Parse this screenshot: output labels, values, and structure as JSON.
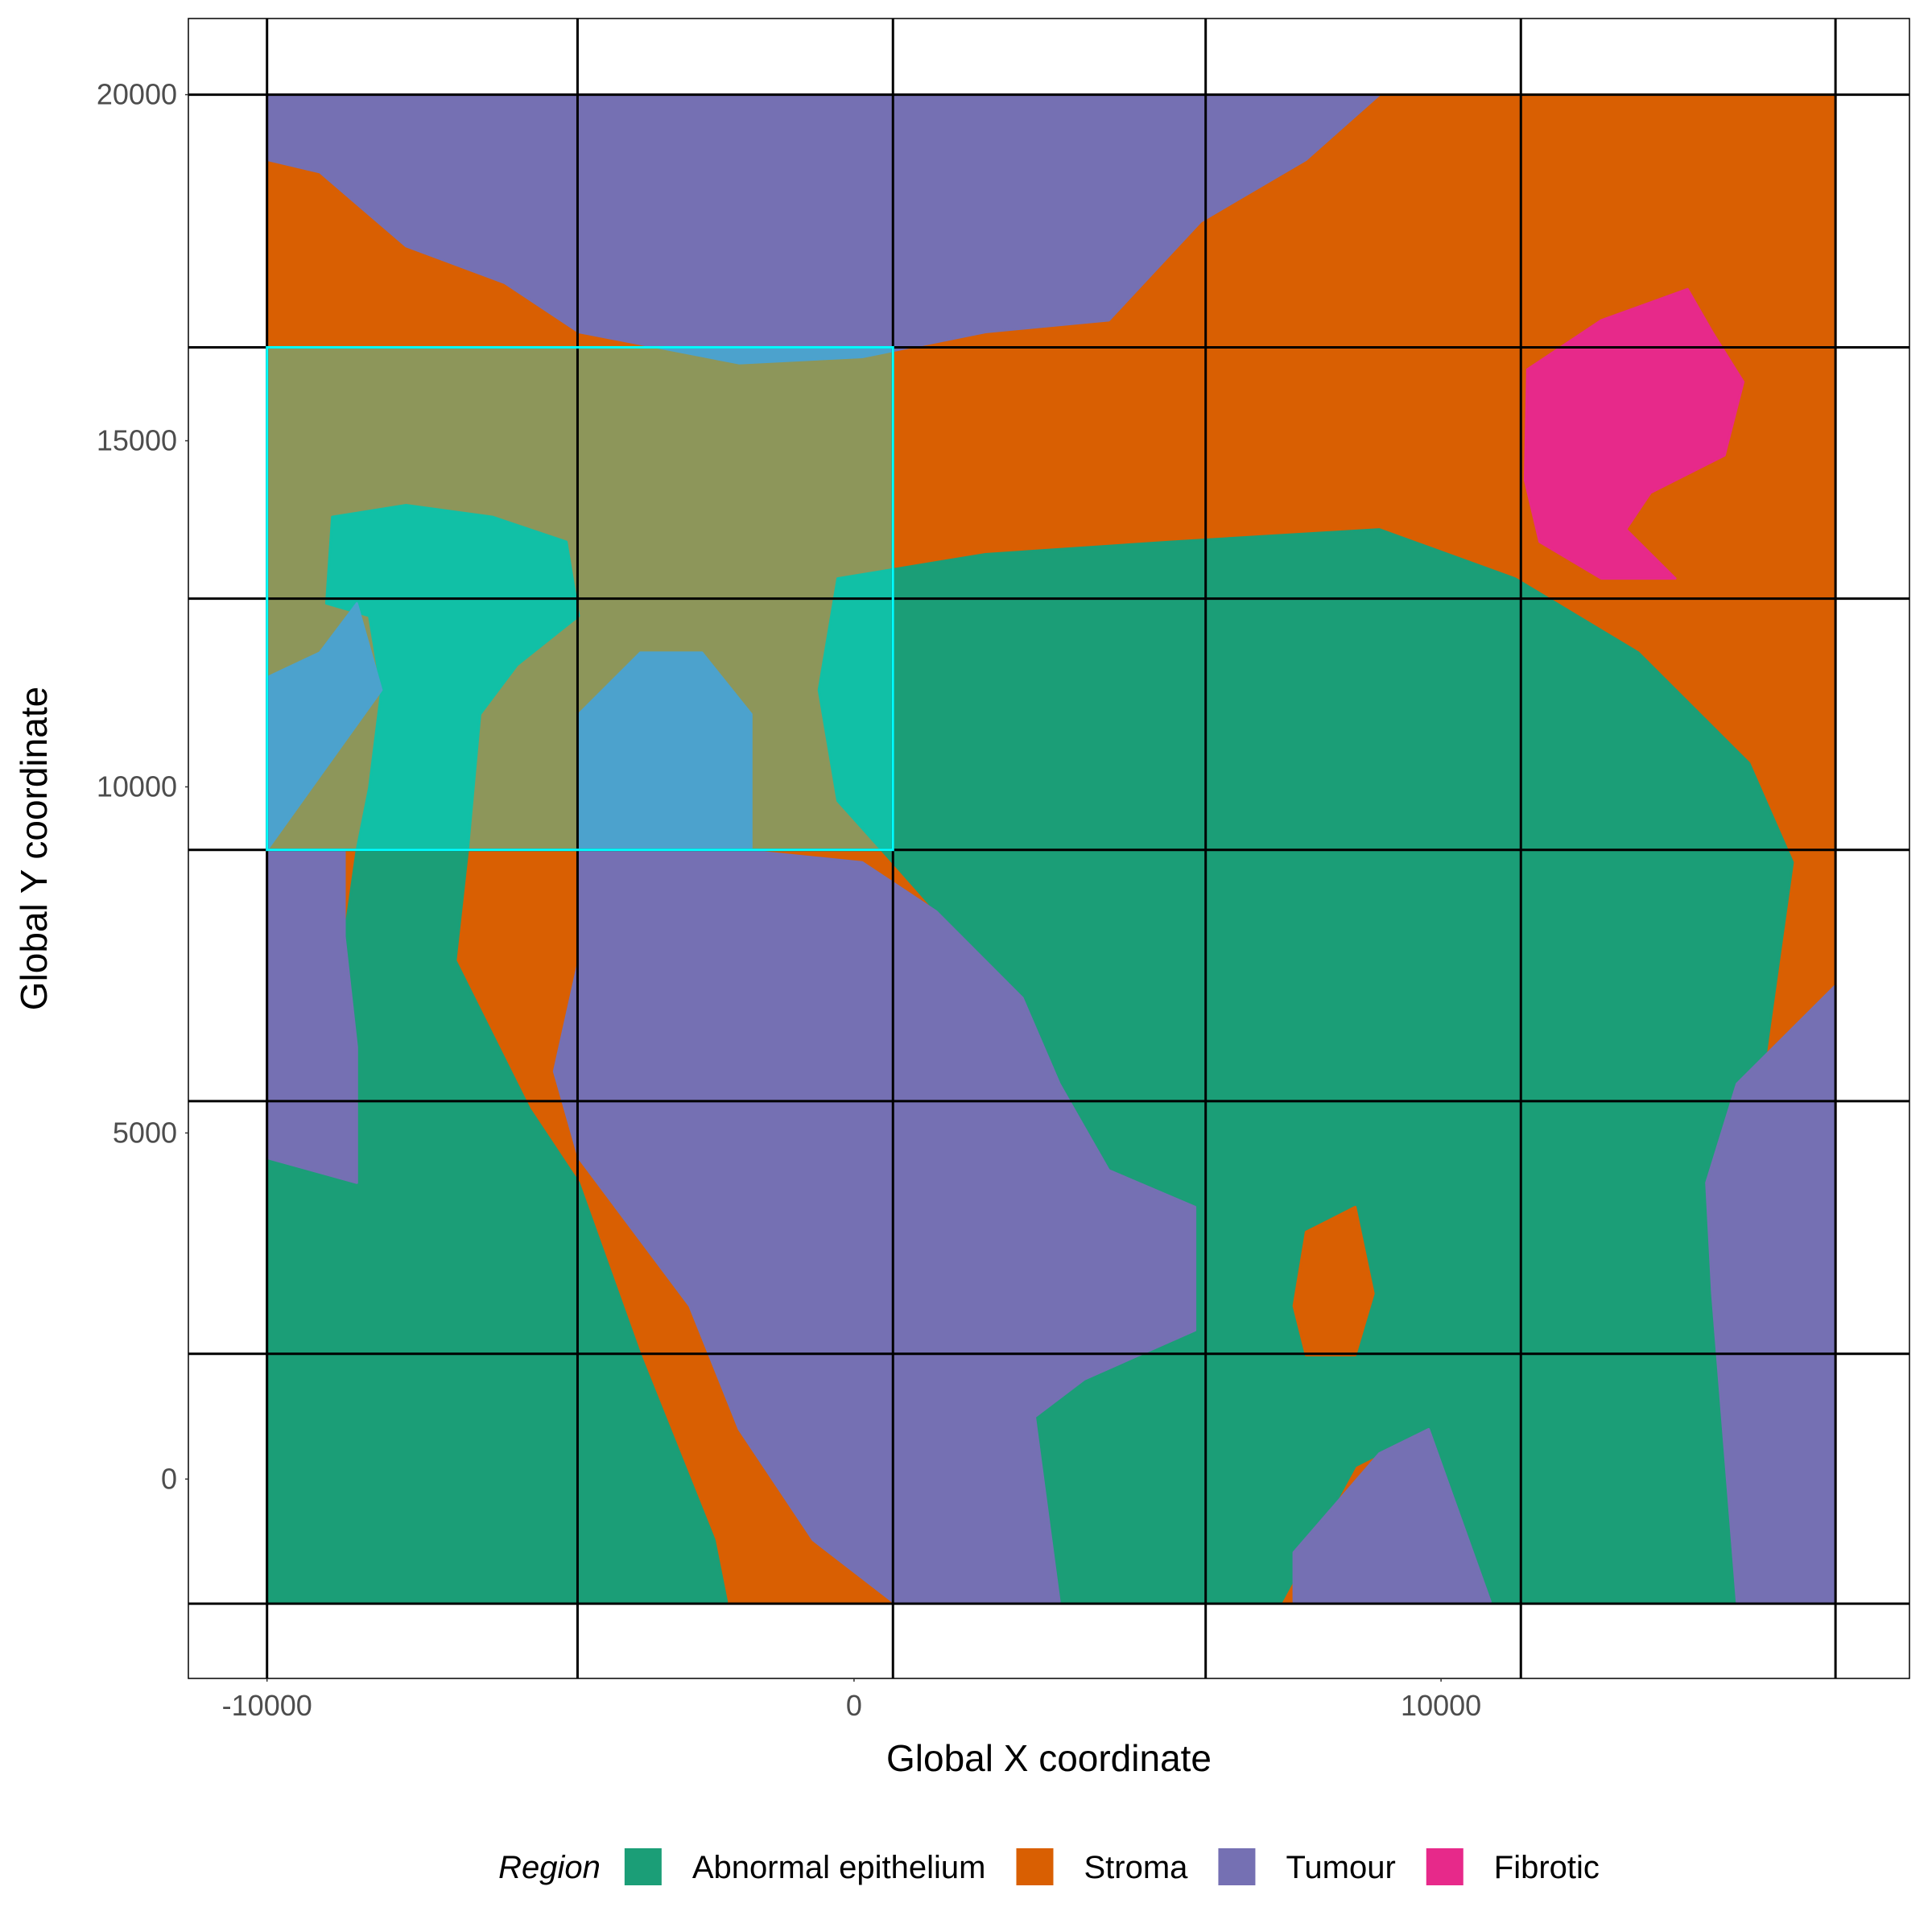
{
  "chart_data": {
    "type": "region-map",
    "x_label": "Global X coordinate",
    "y_label": "Global Y coordinate",
    "legend_title": "Region",
    "legend_position": "bottom",
    "xlim": [
      -11340,
      17980
    ],
    "ylim": [
      -2880,
      21100
    ],
    "xticks": [
      -10000,
      0,
      10000
    ],
    "yticks": [
      0,
      5000,
      10000,
      15000,
      20000
    ],
    "fov_grid": {
      "x": [
        -10000,
        -4710,
        663,
        5990,
        11360,
        16720
      ],
      "y": [
        -1800,
        1810,
        5460,
        9090,
        12720,
        16350,
        20000
      ],
      "color": "#000000"
    },
    "selection": {
      "x": [
        -10000,
        663
      ],
      "y": [
        9090,
        16350
      ],
      "color": "#00ffff"
    },
    "series": [
      {
        "name": "Abnormal epithelium",
        "color": "#1b9e77",
        "polygons": [
          {
            "x": [
              -280,
              2240,
              5390,
              8950,
              11260,
              13360,
              15250,
              15990,
              15460,
              14830,
              14620,
              15040,
              9790,
              9790,
              8540,
              7280,
              6020,
              3500,
              3080,
              3920,
              5810,
              5810,
              4340,
              3500,
              2870,
              1400,
              660,
              -280,
              -600
            ],
            "y": [
              13010,
              13360,
              13540,
              13720,
              13010,
              11940,
              10340,
              8910,
              5710,
              3570,
              2680,
              -1770,
              -1770,
              720,
              190,
              -1770,
              -1770,
              -1770,
              900,
              1440,
              2150,
              3930,
              4460,
              5710,
              6950,
              8200,
              8910,
              9800,
              11400
            ]
          },
          {
            "x": [
              -8470,
              -6580,
              -6790,
              -5530,
              -4690,
              -3640,
              -2380,
              -2170,
              -10000,
              -10000,
              -8470,
              -8470,
              -8680
            ],
            "y": [
              9090,
              9090,
              7490,
              5350,
              4280,
              1790,
              -880,
              -1770,
              -1770,
              4640,
              4280,
              6240,
              7840
            ]
          },
          {
            "x": [
              -8890,
              -7630,
              -6160,
              -4900,
              -4690,
              -5740,
              -6370,
              -6580,
              -8470,
              -8260,
              -8050,
              -8260,
              -8990
            ],
            "y": [
              13900,
              14070,
              13900,
              13540,
              12470,
              11760,
              11050,
              9090,
              9090,
              9980,
              11400,
              12470,
              12650
            ]
          }
        ]
      },
      {
        "name": "Stroma",
        "color": "#d95f02",
        "polygons": [
          {
            "x": [
              -10000,
              16720,
              16720,
              -10000
            ],
            "y": [
              20000,
              20000,
              -1770,
              -1770
            ]
          },
          {
            "x": [
              7700,
              8540,
              8850,
              8540,
              7700,
              7490
            ],
            "y": [
              3570,
              3930,
              2680,
              1790,
              1790,
              2500
            ]
          }
        ]
      },
      {
        "name": "Tumour",
        "color": "#7570b3",
        "polygons": [
          {
            "x": [
              -10000,
              8950,
              7700,
              5910,
              4340,
              2240,
              140,
              -1960,
              -4690,
              -5950,
              -7630,
              -9100,
              -10000
            ],
            "y": [
              20000,
              20000,
              19060,
              18170,
              16740,
              16570,
              16210,
              16120,
              16570,
              17280,
              17810,
              18880,
              19060
            ]
          },
          {
            "x": [
              -4690,
              -1960,
              140,
              1400,
              2870,
              3500,
              4340,
              5810,
              5810,
              3920,
              3080,
              3500,
              660,
              -700,
              -1960,
              -2800,
              -4690,
              -5110,
              -4690
            ],
            "y": [
              9090,
              9090,
              8910,
              8200,
              6950,
              5710,
              4460,
              3930,
              2150,
              1440,
              900,
              -1770,
              -1770,
              -880,
              720,
              2500,
              4640,
              5890,
              7490
            ]
          },
          {
            "x": [
              -10000,
              -8680,
              -8680,
              -8470,
              -8470,
              -10000
            ],
            "y": [
              9090,
              9090,
              7840,
              6240,
              4280,
              4640
            ]
          },
          {
            "x": [
              15040,
              16720,
              16720,
              15040,
              14620,
              14520
            ],
            "y": [
              5710,
              7130,
              -1770,
              -1770,
              2680,
              4280
            ]
          },
          {
            "x": [
              7490,
              8950,
              9790,
              10840,
              7490
            ],
            "y": [
              -1060,
              370,
              720,
              -1770,
              -1770
            ]
          },
          {
            "x": [
              -10000,
              -9100,
              -8470,
              -8050,
              -10000
            ],
            "y": [
              11580,
              11940,
              12650,
              11400,
              9090
            ]
          },
          {
            "x": [
              -4690,
              -3640,
              -2590,
              -1750,
              -1750,
              -4690
            ],
            "y": [
              11050,
              11940,
              11940,
              11050,
              9090,
              9090
            ]
          }
        ]
      },
      {
        "name": "Fibrotic",
        "color": "#e7298a",
        "polygons": [
          {
            "x": [
              11470,
              12730,
              14200,
              14620,
              15150,
              14830,
              13570,
              13150,
              13990,
              12730,
              11680,
              11430
            ],
            "y": [
              16030,
              16740,
              17190,
              16570,
              15850,
              14790,
              14250,
              13720,
              13010,
              13010,
              13540,
              14430
            ]
          }
        ]
      }
    ]
  }
}
